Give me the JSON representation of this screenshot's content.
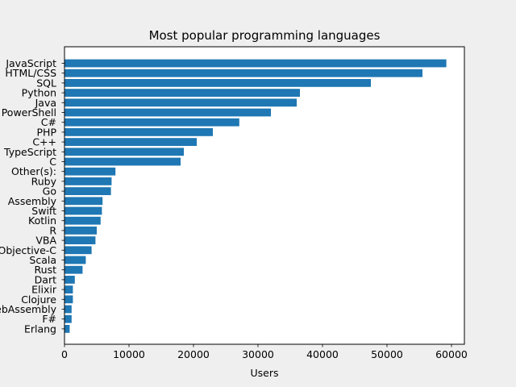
{
  "chart_data": {
    "type": "bar",
    "orientation": "horizontal",
    "title": "Most popular programming languages",
    "xlabel": "Users",
    "ylabel": "",
    "xlim": [
      0,
      62000
    ],
    "xticks": [
      0,
      10000,
      20000,
      30000,
      40000,
      50000,
      60000
    ],
    "grid": false,
    "bar_color": "#1f77b4",
    "categories": [
      "JavaScript",
      "HTML/CSS",
      "SQL",
      "Python",
      "Java",
      "PowerShell",
      "C#",
      "PHP",
      "C++",
      "TypeScript",
      "C",
      "Other(s):",
      "Ruby",
      "Go",
      "Assembly",
      "Swift",
      "Kotlin",
      "R",
      "VBA",
      "Objective-C",
      "Scala",
      "Rust",
      "Dart",
      "Elixir",
      "Clojure",
      "WebAssembly",
      "F#",
      "Erlang"
    ],
    "values": [
      59200,
      55500,
      47500,
      36500,
      36000,
      32000,
      27100,
      23000,
      20500,
      18500,
      18000,
      7900,
      7300,
      7200,
      5900,
      5800,
      5600,
      5000,
      4800,
      4200,
      3300,
      2800,
      1600,
      1300,
      1300,
      1100,
      1100,
      800
    ]
  }
}
